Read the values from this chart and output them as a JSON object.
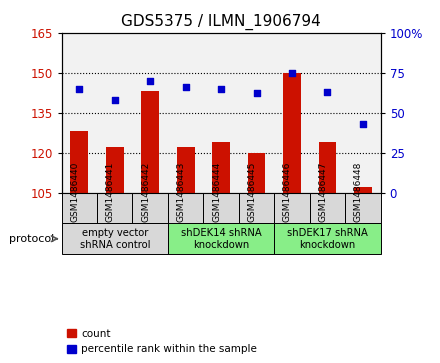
{
  "title": "GDS5375 / ILMN_1906794",
  "samples": [
    "GSM1486440",
    "GSM1486441",
    "GSM1486442",
    "GSM1486443",
    "GSM1486444",
    "GSM1486445",
    "GSM1486446",
    "GSM1486447",
    "GSM1486448"
  ],
  "counts": [
    128,
    122,
    143,
    122,
    124,
    120,
    150,
    124,
    107
  ],
  "percentiles": [
    65,
    58,
    70,
    66,
    65,
    62,
    75,
    63,
    43
  ],
  "ylim_left": [
    105,
    165
  ],
  "ylim_right": [
    0,
    100
  ],
  "yticks_left": [
    105,
    120,
    135,
    150,
    165
  ],
  "yticks_right": [
    0,
    25,
    50,
    75,
    100
  ],
  "bar_color": "#cc1100",
  "dot_color": "#0000cc",
  "bar_width": 0.5,
  "proto_defs": [
    [
      0,
      3,
      "#d8d8d8",
      "empty vector\nshRNA control"
    ],
    [
      3,
      6,
      "#88ee88",
      "shDEK14 shRNA\nknockdown"
    ],
    [
      6,
      9,
      "#88ee88",
      "shDEK17 shRNA\nknockdown"
    ]
  ],
  "protocol_label": "protocol",
  "legend_count_label": "count",
  "legend_pct_label": "percentile rank within the sample",
  "background_color": "#ffffff",
  "plot_bg_color": "#f2f2f2",
  "title_fontsize": 11,
  "tick_fontsize": 8.5
}
